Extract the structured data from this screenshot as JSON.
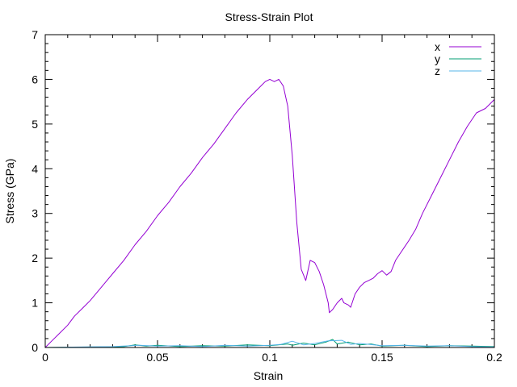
{
  "chart_data": {
    "type": "line",
    "title": "Stress-Strain Plot",
    "xlabel": "Strain",
    "ylabel": "Stress (GPa)",
    "xlim": [
      0,
      0.2
    ],
    "ylim": [
      0,
      7
    ],
    "x_ticks": [
      0,
      0.05,
      0.1,
      0.15,
      0.2
    ],
    "x_tick_labels": [
      "0",
      "0.05",
      "0.1",
      "0.15",
      "0.2"
    ],
    "y_ticks": [
      0,
      1,
      2,
      3,
      4,
      5,
      6,
      7
    ],
    "y_tick_labels": [
      "0",
      "1",
      "2",
      "3",
      "4",
      "5",
      "6",
      "7"
    ],
    "grid": false,
    "legend_position": "top-right",
    "series": [
      {
        "name": "x",
        "color": "#9400d3",
        "points": [
          [
            0.0,
            0.0
          ],
          [
            0.003,
            0.15
          ],
          [
            0.006,
            0.3
          ],
          [
            0.01,
            0.5
          ],
          [
            0.013,
            0.7
          ],
          [
            0.017,
            0.9
          ],
          [
            0.02,
            1.05
          ],
          [
            0.025,
            1.35
          ],
          [
            0.03,
            1.65
          ],
          [
            0.035,
            1.95
          ],
          [
            0.04,
            2.3
          ],
          [
            0.045,
            2.6
          ],
          [
            0.05,
            2.95
          ],
          [
            0.055,
            3.25
          ],
          [
            0.06,
            3.6
          ],
          [
            0.065,
            3.9
          ],
          [
            0.07,
            4.25
          ],
          [
            0.075,
            4.55
          ],
          [
            0.08,
            4.9
          ],
          [
            0.085,
            5.25
          ],
          [
            0.09,
            5.55
          ],
          [
            0.095,
            5.8
          ],
          [
            0.098,
            5.95
          ],
          [
            0.1,
            6.0
          ],
          [
            0.102,
            5.95
          ],
          [
            0.104,
            6.0
          ],
          [
            0.106,
            5.85
          ],
          [
            0.108,
            5.4
          ],
          [
            0.11,
            4.3
          ],
          [
            0.112,
            2.8
          ],
          [
            0.114,
            1.75
          ],
          [
            0.116,
            1.5
          ],
          [
            0.118,
            1.95
          ],
          [
            0.12,
            1.9
          ],
          [
            0.122,
            1.7
          ],
          [
            0.124,
            1.4
          ],
          [
            0.126,
            1.0
          ],
          [
            0.1265,
            0.78
          ],
          [
            0.128,
            0.85
          ],
          [
            0.13,
            1.0
          ],
          [
            0.132,
            1.1
          ],
          [
            0.133,
            1.0
          ],
          [
            0.135,
            0.95
          ],
          [
            0.136,
            0.9
          ],
          [
            0.138,
            1.2
          ],
          [
            0.14,
            1.35
          ],
          [
            0.142,
            1.45
          ],
          [
            0.144,
            1.5
          ],
          [
            0.146,
            1.55
          ],
          [
            0.148,
            1.65
          ],
          [
            0.15,
            1.72
          ],
          [
            0.152,
            1.62
          ],
          [
            0.154,
            1.7
          ],
          [
            0.156,
            1.95
          ],
          [
            0.158,
            2.1
          ],
          [
            0.16,
            2.25
          ],
          [
            0.162,
            2.4
          ],
          [
            0.165,
            2.65
          ],
          [
            0.168,
            3.0
          ],
          [
            0.172,
            3.4
          ],
          [
            0.176,
            3.8
          ],
          [
            0.18,
            4.2
          ],
          [
            0.184,
            4.6
          ],
          [
            0.188,
            4.95
          ],
          [
            0.192,
            5.25
          ],
          [
            0.196,
            5.35
          ],
          [
            0.2,
            5.55
          ]
        ]
      },
      {
        "name": "y",
        "color": "#009e73",
        "points": [
          [
            0.0,
            0.0
          ],
          [
            0.02,
            0.01
          ],
          [
            0.035,
            0.02
          ],
          [
            0.04,
            0.06
          ],
          [
            0.045,
            0.03
          ],
          [
            0.05,
            0.05
          ],
          [
            0.06,
            0.02
          ],
          [
            0.07,
            0.04
          ],
          [
            0.08,
            0.03
          ],
          [
            0.09,
            0.06
          ],
          [
            0.1,
            0.04
          ],
          [
            0.108,
            0.08
          ],
          [
            0.11,
            0.05
          ],
          [
            0.115,
            0.1
          ],
          [
            0.12,
            0.06
          ],
          [
            0.125,
            0.12
          ],
          [
            0.128,
            0.18
          ],
          [
            0.13,
            0.08
          ],
          [
            0.135,
            0.12
          ],
          [
            0.14,
            0.06
          ],
          [
            0.145,
            0.08
          ],
          [
            0.15,
            0.03
          ],
          [
            0.16,
            0.05
          ],
          [
            0.17,
            0.02
          ],
          [
            0.18,
            0.04
          ],
          [
            0.19,
            0.03
          ],
          [
            0.2,
            0.02
          ]
        ]
      },
      {
        "name": "z",
        "color": "#56b4e9",
        "points": [
          [
            0.0,
            0.0
          ],
          [
            0.015,
            0.01
          ],
          [
            0.03,
            0.02
          ],
          [
            0.042,
            0.05
          ],
          [
            0.05,
            0.03
          ],
          [
            0.06,
            0.04
          ],
          [
            0.07,
            0.02
          ],
          [
            0.08,
            0.05
          ],
          [
            0.09,
            0.03
          ],
          [
            0.1,
            0.05
          ],
          [
            0.105,
            0.07
          ],
          [
            0.11,
            0.14
          ],
          [
            0.115,
            0.06
          ],
          [
            0.12,
            0.09
          ],
          [
            0.126,
            0.15
          ],
          [
            0.132,
            0.16
          ],
          [
            0.136,
            0.07
          ],
          [
            0.14,
            0.09
          ],
          [
            0.15,
            0.04
          ],
          [
            0.16,
            0.05
          ],
          [
            0.17,
            0.03
          ],
          [
            0.18,
            0.04
          ],
          [
            0.19,
            0.02
          ],
          [
            0.2,
            0.01
          ]
        ]
      }
    ]
  }
}
